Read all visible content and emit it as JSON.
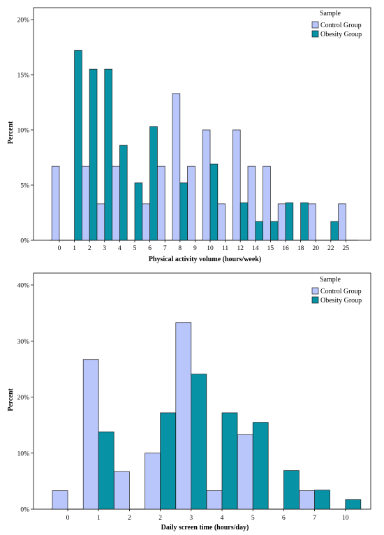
{
  "colors": {
    "control": "#b9c6fb",
    "obesity": "#0892a6"
  },
  "chart_data": [
    {
      "type": "bar",
      "xlabel": "Physical activity volume (hours/week)",
      "ylabel": "Percent",
      "ylim": [
        0,
        20
      ],
      "yticks": [
        "0%",
        "5%",
        "10%",
        "15%",
        "20%"
      ],
      "legend": {
        "title": "Sample",
        "placement": "top-right"
      },
      "categories": [
        "0",
        "1",
        "2",
        "3",
        "4",
        "5",
        "6",
        "7",
        "8",
        "9",
        "10",
        "11",
        "12",
        "14",
        "15",
        "16",
        "18",
        "20",
        "22",
        "25"
      ],
      "series": [
        {
          "name": "Control Group",
          "values": [
            6.7,
            0,
            6.7,
            3.3,
            6.7,
            0,
            3.3,
            6.7,
            13.3,
            6.7,
            10.0,
            3.3,
            10.0,
            6.7,
            6.7,
            3.3,
            0,
            3.3,
            0,
            3.3
          ]
        },
        {
          "name": "Obesity Group",
          "values": [
            0,
            17.2,
            15.5,
            15.5,
            8.6,
            5.2,
            10.3,
            0,
            5.2,
            0,
            6.9,
            0,
            3.4,
            1.7,
            1.7,
            3.4,
            3.4,
            0,
            1.7,
            0
          ]
        }
      ]
    },
    {
      "type": "bar",
      "xlabel": "Daily screen time (hours/day)",
      "ylabel": "Percent",
      "ylim": [
        0,
        40
      ],
      "yticks": [
        "0%",
        "10%",
        "20%",
        "30%",
        "40%"
      ],
      "legend": {
        "title": "Sample",
        "placement": "top-right"
      },
      "categories": [
        "0",
        "1",
        "2",
        "2",
        "3",
        "4",
        "5",
        "6",
        "7",
        "10"
      ],
      "series": [
        {
          "name": "Control Group",
          "values": [
            3.3,
            26.7,
            6.7,
            10.0,
            33.3,
            3.3,
            13.3,
            0,
            3.3,
            0
          ]
        },
        {
          "name": "Obesity Group",
          "values": [
            0,
            13.8,
            0,
            17.2,
            24.1,
            17.2,
            15.5,
            6.9,
            3.4,
            1.7
          ]
        }
      ]
    }
  ]
}
